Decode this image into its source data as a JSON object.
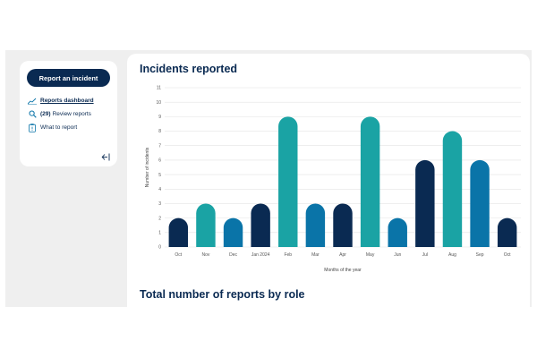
{
  "sidebar": {
    "report_button": "Report an incident",
    "items": [
      {
        "label": "Reports dashboard",
        "icon": "chart-line-icon",
        "active": true
      },
      {
        "count": "(29)",
        "label": "Review reports",
        "icon": "search-icon"
      },
      {
        "label": "What to report",
        "icon": "clipboard-icon"
      }
    ],
    "collapse_icon": "collapse-sidebar-icon"
  },
  "main": {
    "title": "Incidents reported",
    "section2_title": "Total number of reports by role"
  },
  "colors": {
    "navy": "#0a2a52",
    "teal": "#1aa3a4",
    "blue": "#0a74a8"
  },
  "chart_data": {
    "type": "bar",
    "xlabel": "Months of the year",
    "ylabel": "Number of incidents",
    "ylim": [
      0,
      11
    ],
    "yticks": [
      0,
      1,
      2,
      3,
      4,
      5,
      6,
      7,
      8,
      9,
      10,
      11
    ],
    "grid": true,
    "categories": [
      "Oct",
      "Nov",
      "Dec",
      "Jan 2024",
      "Feb",
      "Mar",
      "Apr",
      "May",
      "Jun",
      "Jul",
      "Aug",
      "Sep",
      "Oct"
    ],
    "values": [
      2,
      3,
      2,
      3,
      9,
      3,
      3,
      9,
      2,
      6,
      8,
      6,
      2
    ],
    "bar_colors": [
      "#0a2a52",
      "#1aa3a4",
      "#0a74a8",
      "#0a2a52",
      "#1aa3a4",
      "#0a74a8",
      "#0a2a52",
      "#1aa3a4",
      "#0a74a8",
      "#0a2a52",
      "#1aa3a4",
      "#0a74a8",
      "#0a2a52"
    ]
  }
}
